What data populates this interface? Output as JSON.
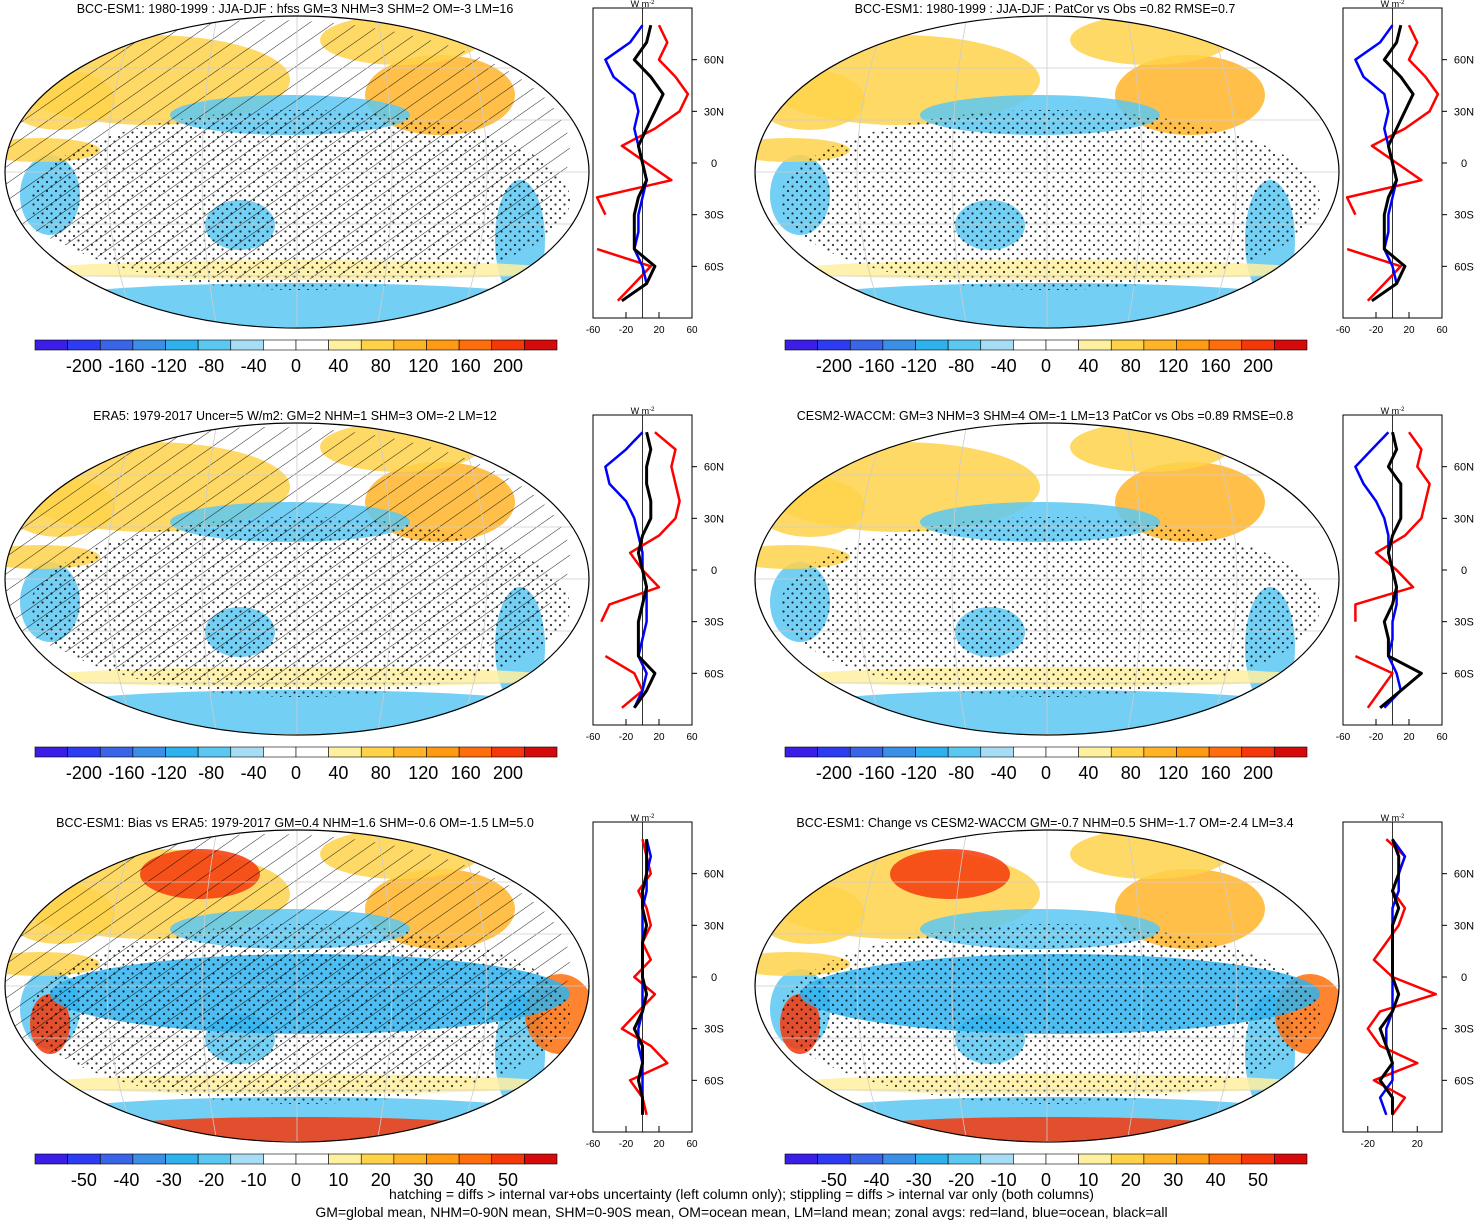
{
  "panels": [
    {
      "id": "p1",
      "title": "BCC-ESM1: 1980-1999 : JJA-DJF : hfss GM=3 NHM=3 SHM=2 OM=-3 LM=16",
      "colorbar": {
        "type": "large",
        "labels": [
          "-200",
          "-160",
          "-120",
          "-80",
          "-40",
          "0",
          "40",
          "80",
          "120",
          "160",
          "200"
        ]
      },
      "zonal": {
        "unit": "W m",
        "unit_sup": "-2",
        "xticks": [
          "-60",
          "-20",
          "20",
          "60"
        ],
        "xlim": [
          -60,
          60
        ],
        "yticks": [
          "60N",
          "30N",
          "0",
          "30S",
          "60S"
        ]
      },
      "hatched": true,
      "style": "jja"
    },
    {
      "id": "p2",
      "title": "BCC-ESM1: 1980-1999 : JJA-DJF : PatCor vs Obs =0.82 RMSE=0.7",
      "colorbar": {
        "type": "large",
        "labels": [
          "-200",
          "-160",
          "-120",
          "-80",
          "-40",
          "0",
          "40",
          "80",
          "120",
          "160",
          "200"
        ]
      },
      "zonal": {
        "unit": "W m",
        "unit_sup": "-2",
        "xticks": [
          "-60",
          "-20",
          "20",
          "60"
        ],
        "xlim": [
          -60,
          60
        ],
        "yticks": [
          "60N",
          "30N",
          "0",
          "30S",
          "60S"
        ]
      },
      "hatched": false,
      "style": "jja"
    },
    {
      "id": "p3",
      "title": "ERA5: 1979-2017 Uncer=5 W/m2: GM=2 NHM=1 SHM=3 OM=-2 LM=12",
      "colorbar": {
        "type": "large",
        "labels": [
          "-200",
          "-160",
          "-120",
          "-80",
          "-40",
          "0",
          "40",
          "80",
          "120",
          "160",
          "200"
        ]
      },
      "zonal": {
        "unit": "W m",
        "unit_sup": "-2",
        "xticks": [
          "-60",
          "-20",
          "20",
          "60"
        ],
        "xlim": [
          -60,
          60
        ],
        "yticks": [
          "60N",
          "30N",
          "0",
          "30S",
          "60S"
        ]
      },
      "hatched": true,
      "style": "jja"
    },
    {
      "id": "p4",
      "title": "CESM2-WACCM: GM=3 NHM=3 SHM=4 OM=-1 LM=13 PatCor vs Obs =0.89 RMSE=0.8",
      "colorbar": {
        "type": "large",
        "labels": [
          "-200",
          "-160",
          "-120",
          "-80",
          "-40",
          "0",
          "40",
          "80",
          "120",
          "160",
          "200"
        ]
      },
      "zonal": {
        "unit": "W m",
        "unit_sup": "-2",
        "xticks": [
          "-60",
          "-20",
          "20",
          "60"
        ],
        "xlim": [
          -60,
          60
        ],
        "yticks": [
          "60N",
          "30N",
          "0",
          "30S",
          "60S"
        ]
      },
      "hatched": false,
      "style": "jja"
    },
    {
      "id": "p5",
      "title": "BCC-ESM1: Bias vs ERA5: 1979-2017 GM=0.4 NHM=1.6 SHM=-0.6 OM=-1.5 LM=5.0",
      "colorbar": {
        "type": "small",
        "labels": [
          "-50",
          "-40",
          "-30",
          "-20",
          "-10",
          "0",
          "10",
          "20",
          "30",
          "40",
          "50"
        ]
      },
      "zonal": {
        "unit": "W m",
        "unit_sup": "-2",
        "xticks": [
          "-60",
          "-20",
          "20",
          "60"
        ],
        "xlim": [
          -60,
          60
        ],
        "yticks": [
          "60N",
          "30N",
          "0",
          "30S",
          "60S"
        ]
      },
      "hatched": true,
      "style": "bias"
    },
    {
      "id": "p6",
      "title": "BCC-ESM1: Change vs CESM2-WACCM GM=-0.7 NHM=0.5 SHM=-1.7 OM=-2.4 LM=3.4",
      "colorbar": {
        "type": "small",
        "labels": [
          "-50",
          "-40",
          "-30",
          "-20",
          "-10",
          "0",
          "10",
          "20",
          "30",
          "40",
          "50"
        ]
      },
      "zonal": {
        "unit": "W m",
        "unit_sup": "-2",
        "xticks": [
          "-20",
          "20"
        ],
        "xlim": [
          -40,
          40
        ],
        "yticks": [
          "60N",
          "30N",
          "0",
          "30S",
          "60S"
        ]
      },
      "hatched": false,
      "style": "bias"
    }
  ],
  "colors": {
    "large": [
      "#3b1ee6",
      "#2d3cf0",
      "#3a65e6",
      "#3b8fe6",
      "#2fb1ee",
      "#5bc8f2",
      "#a6dcf4",
      "#ffffff",
      "#ffffff",
      "#fff0a0",
      "#ffd24a",
      "#ffb428",
      "#ff9a12",
      "#ff6e0c",
      "#f4380a",
      "#d50a0a"
    ],
    "small": [
      "#3b1ee6",
      "#2d3cf0",
      "#3a65e6",
      "#3b8fe6",
      "#2fb1ee",
      "#5bc8f2",
      "#a6dcf4",
      "#ffffff",
      "#ffffff",
      "#fff0a0",
      "#ffd24a",
      "#ffb428",
      "#ff9a12",
      "#ff6e0c",
      "#f4380a",
      "#d50a0a"
    ],
    "land": "#ff0000",
    "ocean": "#0000ff",
    "all": "#000000"
  },
  "chart_data": [
    {
      "type": "heatmap",
      "title": "BCC-ESM1: 1980-1999 : JJA-DJF : hfss GM=3 NHM=3 SHM=2 OM=-3 LM=16",
      "legend_range": [
        -200,
        200
      ],
      "zonal_avgs": {
        "lat": [
          80,
          70,
          60,
          50,
          40,
          30,
          20,
          10,
          0,
          -10,
          -20,
          -30,
          -40,
          -50,
          -60,
          -70,
          -80
        ],
        "land": [
          20,
          30,
          20,
          40,
          55,
          45,
          15,
          -25,
          5,
          35,
          -55,
          -45,
          null,
          -55,
          10,
          -10,
          -30
        ],
        "ocean": [
          0,
          -15,
          -45,
          -35,
          -10,
          -5,
          -10,
          -5,
          0,
          5,
          0,
          -5,
          -5,
          -10,
          0,
          5,
          -25
        ],
        "all": [
          10,
          5,
          -10,
          10,
          25,
          15,
          5,
          -5,
          0,
          5,
          -5,
          -10,
          -10,
          -10,
          15,
          5,
          -25
        ]
      }
    },
    {
      "type": "heatmap",
      "title": "BCC-ESM1: 1980-1999 : JJA-DJF : PatCor vs Obs =0.82 RMSE=0.7",
      "legend_range": [
        -200,
        200
      ],
      "zonal_avgs": {
        "lat": [
          80,
          70,
          60,
          50,
          40,
          30,
          20,
          10,
          0,
          -10,
          -20,
          -30,
          -40,
          -50,
          -60,
          -70,
          -80
        ],
        "land": [
          20,
          30,
          20,
          40,
          55,
          45,
          15,
          -25,
          5,
          35,
          -55,
          -45,
          null,
          -55,
          10,
          -10,
          -30
        ],
        "ocean": [
          0,
          -15,
          -45,
          -35,
          -10,
          -5,
          -10,
          -5,
          0,
          5,
          0,
          -5,
          -5,
          -10,
          0,
          5,
          -25
        ],
        "all": [
          10,
          5,
          -10,
          10,
          25,
          15,
          5,
          -5,
          0,
          5,
          -5,
          -10,
          -10,
          -10,
          15,
          5,
          -25
        ]
      }
    },
    {
      "type": "heatmap",
      "title": "ERA5: 1979-2017 Uncer=5 W/m2: GM=2 NHM=1 SHM=3 OM=-2 LM=12",
      "legend_range": [
        -200,
        200
      ],
      "zonal_avgs": {
        "lat": [
          80,
          70,
          60,
          50,
          40,
          30,
          20,
          10,
          0,
          -10,
          -20,
          -30,
          -40,
          -50,
          -60,
          -70,
          -80
        ],
        "land": [
          15,
          40,
          35,
          40,
          45,
          40,
          20,
          -15,
          0,
          20,
          -40,
          -50,
          null,
          -45,
          -10,
          0,
          -25
        ],
        "ocean": [
          0,
          -20,
          -45,
          -40,
          -20,
          -10,
          -5,
          0,
          0,
          5,
          5,
          5,
          0,
          -5,
          5,
          0,
          -10
        ],
        "all": [
          5,
          10,
          5,
          5,
          10,
          10,
          0,
          -5,
          0,
          5,
          0,
          -5,
          -5,
          -5,
          15,
          5,
          -10
        ]
      }
    },
    {
      "type": "heatmap",
      "title": "CESM2-WACCM: GM=3 NHM=3 SHM=4 OM=-1 LM=13 PatCor vs Obs =0.89 RMSE=0.8",
      "legend_range": [
        -200,
        200
      ],
      "zonal_avgs": {
        "lat": [
          80,
          70,
          60,
          50,
          40,
          30,
          20,
          10,
          0,
          -10,
          -20,
          -30,
          -40,
          -50,
          -60,
          -70,
          -80
        ],
        "land": [
          20,
          35,
          30,
          45,
          40,
          35,
          15,
          -20,
          5,
          25,
          -45,
          -45,
          null,
          -45,
          0,
          -15,
          -30
        ],
        "ocean": [
          -5,
          -25,
          -45,
          -35,
          -20,
          -10,
          -5,
          -5,
          0,
          5,
          5,
          0,
          0,
          -5,
          5,
          10,
          -10
        ],
        "all": [
          0,
          5,
          -5,
          10,
          10,
          10,
          0,
          -5,
          0,
          5,
          0,
          -10,
          -5,
          -5,
          35,
          10,
          -15
        ]
      }
    },
    {
      "type": "heatmap",
      "title": "BCC-ESM1: Bias vs ERA5: 1979-2017 GM=0.4 NHM=1.6 SHM=-0.6 OM=-1.5 LM=5.0",
      "legend_range": [
        -50,
        50
      ],
      "zonal_avgs": {
        "lat": [
          80,
          70,
          60,
          50,
          40,
          30,
          20,
          10,
          0,
          -10,
          -20,
          -30,
          -40,
          -50,
          -60,
          -70,
          -80
        ],
        "land": [
          0,
          5,
          10,
          -5,
          5,
          10,
          0,
          10,
          -10,
          15,
          -5,
          -25,
          10,
          30,
          -15,
          0,
          5
        ],
        "ocean": [
          5,
          10,
          5,
          5,
          0,
          0,
          0,
          0,
          0,
          0,
          0,
          -5,
          -5,
          0,
          0,
          0,
          0
        ],
        "all": [
          5,
          5,
          5,
          0,
          0,
          5,
          0,
          0,
          0,
          5,
          0,
          -10,
          0,
          0,
          -5,
          0,
          0
        ]
      }
    },
    {
      "type": "heatmap",
      "title": "BCC-ESM1: Change vs CESM2-WACCM GM=-0.7 NHM=0.5 SHM=-1.7 OM=-2.4 LM=3.4",
      "legend_range": [
        -50,
        50
      ],
      "zonal_avgs": {
        "lat": [
          80,
          70,
          60,
          50,
          40,
          30,
          20,
          10,
          0,
          -10,
          -20,
          -30,
          -40,
          -50,
          -60,
          -70,
          -80
        ],
        "land": [
          -5,
          10,
          5,
          0,
          10,
          5,
          -5,
          -15,
          0,
          35,
          -10,
          -20,
          -10,
          20,
          -15,
          10,
          0
        ],
        "ocean": [
          0,
          10,
          5,
          5,
          0,
          0,
          0,
          0,
          0,
          0,
          0,
          -5,
          -5,
          0,
          0,
          -10,
          -5
        ],
        "all": [
          0,
          5,
          5,
          0,
          5,
          0,
          0,
          0,
          0,
          5,
          0,
          -10,
          -5,
          0,
          -10,
          0,
          0
        ]
      }
    }
  ],
  "footer": {
    "line1": "hatching = diffs > internal var+obs uncertainty (left column only); stippling = diffs > internal var only (both columns)",
    "line2": "GM=global mean, NHM=0-90N mean, SHM=0-90S mean, OM=ocean mean, LM=land mean; zonal avgs: red=land, blue=ocean, black=all"
  }
}
